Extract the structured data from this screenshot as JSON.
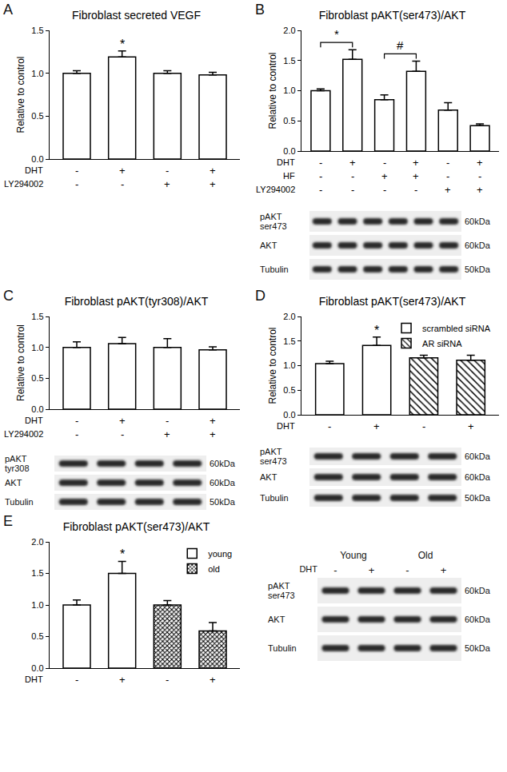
{
  "chart_data": [
    {
      "panel": "A",
      "type": "bar",
      "title": "Fibroblast secreted VEGF",
      "y_label": "Relative to control",
      "categories": [
        null,
        null,
        null,
        null
      ],
      "values": [
        1.0,
        1.19,
        1.0,
        0.98
      ],
      "errors": [
        0.03,
        0.07,
        0.03,
        0.03
      ],
      "color": "#ffffff",
      "ylim": [
        0,
        1.5
      ],
      "yticks": [
        {
          "value": 0,
          "label": "0.0"
        },
        {
          "value": 0.5,
          "label": "0.5"
        },
        {
          "value": 1,
          "label": "1.0"
        },
        {
          "value": 1.5,
          "label": "1.5"
        }
      ],
      "grid": false,
      "tick_labels": "y",
      "annotations": [
        {
          "text": "*",
          "index": 1
        }
      ],
      "conditions": [
        {
          "label": "DHT",
          "values": [
            "-",
            "+",
            "-",
            "+"
          ]
        },
        {
          "label": "LY294002",
          "values": [
            "-",
            "-",
            "+",
            "+"
          ]
        }
      ]
    },
    {
      "panel": "B",
      "type": "bar",
      "title": "Fibroblast pAKT(ser473)/AKT",
      "y_label": "Relative to control",
      "categories": [
        null,
        null,
        null,
        null,
        null,
        null
      ],
      "values": [
        1.0,
        1.52,
        0.85,
        1.32,
        0.68,
        0.42
      ],
      "errors": [
        0.03,
        0.16,
        0.08,
        0.17,
        0.12,
        0.03
      ],
      "color": "#ffffff",
      "ylim": [
        0,
        2
      ],
      "yticks": [
        {
          "value": 0,
          "label": "0.0"
        },
        {
          "value": 0.5,
          "label": "0.5"
        },
        {
          "value": 1,
          "label": "1.0"
        },
        {
          "value": 1.5,
          "label": "1.5"
        },
        {
          "value": 2,
          "label": "2.0"
        }
      ],
      "grid": false,
      "tick_labels": "y",
      "brackets": [
        {
          "text": "*",
          "from": 0,
          "to": 1
        },
        {
          "text": "#",
          "from": 2,
          "to": 3
        }
      ],
      "conditions": [
        {
          "label": "DHT",
          "values": [
            "-",
            "+",
            "-",
            "+",
            "-",
            "+"
          ]
        },
        {
          "label": "HF",
          "values": [
            "-",
            "-",
            "+",
            "+",
            "-",
            "-"
          ]
        },
        {
          "label": "LY294002",
          "values": [
            "-",
            "-",
            "-",
            "-",
            "+",
            "+"
          ]
        }
      ],
      "blot": {
        "rows": [
          {
            "label": "pAKT\nser473",
            "size": "60kDa"
          },
          {
            "label": "AKT",
            "size": "60kDa"
          },
          {
            "label": "Tubulin",
            "size": "50kDa"
          }
        ]
      }
    },
    {
      "panel": "C",
      "type": "bar",
      "title": "Fibroblast pAKT(tyr308)/AKT",
      "y_label": "Relative to control",
      "categories": [
        null,
        null,
        null,
        null
      ],
      "values": [
        1.0,
        1.06,
        1.0,
        0.96
      ],
      "errors": [
        0.09,
        0.1,
        0.14,
        0.05
      ],
      "color": "#ffffff",
      "ylim": [
        0,
        1.5
      ],
      "yticks": [
        {
          "value": 0,
          "label": "0.0"
        },
        {
          "value": 0.5,
          "label": "0.5"
        },
        {
          "value": 1,
          "label": "1.0"
        },
        {
          "value": 1.5,
          "label": "1.5"
        }
      ],
      "grid": false,
      "tick_labels": "y",
      "conditions": [
        {
          "label": "DHT",
          "values": [
            "-",
            "+",
            "-",
            "+"
          ]
        },
        {
          "label": "LY294002",
          "values": [
            "-",
            "-",
            "+",
            "+"
          ]
        }
      ],
      "blot": {
        "rows": [
          {
            "label": "pAKT\ntyr308",
            "size": "60kDa"
          },
          {
            "label": "AKT",
            "size": "60kDa"
          },
          {
            "label": "Tubulin",
            "size": "50kDa"
          }
        ]
      }
    },
    {
      "panel": "D",
      "type": "bar",
      "title": "Fibroblast pAKT(ser473)/AKT",
      "y_label": "Relative to control",
      "categories": [
        null,
        null,
        null,
        null
      ],
      "series": [
        {
          "name": "scrambled siRNA",
          "color": "#ffffff",
          "values": [
            1.04,
            1.41,
            null,
            null
          ],
          "errors": [
            0.05,
            0.17,
            null,
            null
          ]
        },
        {
          "name": "AR siRNA",
          "color": "#ffffff",
          "marker": "diagonal",
          "values": [
            null,
            null,
            1.16,
            1.11
          ],
          "errors": [
            null,
            null,
            0.05,
            0.1
          ]
        }
      ],
      "ylim": [
        0,
        2
      ],
      "yticks": [
        {
          "value": 0,
          "label": "0.0"
        },
        {
          "value": 0.5,
          "label": "0.5"
        },
        {
          "value": 1,
          "label": "1.0"
        },
        {
          "value": 1.5,
          "label": "1.5"
        },
        {
          "value": 2,
          "label": "2.0"
        }
      ],
      "grid": false,
      "tick_labels": "y",
      "legend": "upper right",
      "annotations": [
        {
          "text": "*",
          "index": 1
        }
      ],
      "conditions": [
        {
          "label": "DHT",
          "values": [
            "-",
            "+",
            "-",
            "+"
          ]
        }
      ],
      "blot": {
        "rows": [
          {
            "label": "pAKT\nser473",
            "size": "60kDa"
          },
          {
            "label": "AKT",
            "size": "60kDa"
          },
          {
            "label": "Tubulin",
            "size": "50kDa"
          }
        ]
      }
    },
    {
      "panel": "E",
      "type": "bar",
      "title": "Fibroblast pAKT(ser473)/AKT",
      "categories": [
        null,
        null,
        null,
        null
      ],
      "series": [
        {
          "name": "young",
          "color": "#ffffff",
          "values": [
            1.0,
            1.5,
            null,
            null
          ],
          "errors": [
            0.08,
            0.19,
            null,
            null
          ]
        },
        {
          "name": "old",
          "color": "#ffffff",
          "marker": "crosshatch",
          "values": [
            null,
            null,
            1.0,
            0.59
          ],
          "errors": [
            null,
            null,
            0.07,
            0.13
          ]
        }
      ],
      "ylim": [
        0,
        2
      ],
      "yticks": [
        {
          "value": 0,
          "label": "0.0"
        },
        {
          "value": 0.5,
          "label": "0.5"
        },
        {
          "value": 1,
          "label": "1.0"
        },
        {
          "value": 1.5,
          "label": "1.5"
        },
        {
          "value": 2,
          "label": "2.0"
        }
      ],
      "grid": false,
      "tick_labels": "y",
      "legend": "upper right",
      "annotations": [
        {
          "text": "*",
          "index": 1
        }
      ],
      "conditions": [
        {
          "label": "DHT",
          "values": [
            "-",
            "+",
            "-",
            "+"
          ]
        }
      ],
      "blot": {
        "groups": [
          "Young",
          "Old"
        ],
        "condition": {
          "label": "DHT",
          "values": [
            "-",
            "+",
            "-",
            "+"
          ]
        },
        "rows": [
          {
            "label": "pAKT\nser473",
            "size": "60kDa"
          },
          {
            "label": "AKT",
            "size": "60kDa"
          },
          {
            "label": "Tubulin",
            "size": "50kDa"
          }
        ]
      }
    }
  ]
}
